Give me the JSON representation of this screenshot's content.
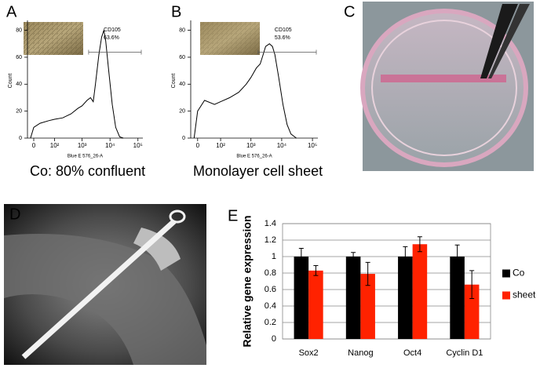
{
  "panel_labels": [
    "A",
    "B",
    "C",
    "D",
    "E"
  ],
  "chart_data": [
    {
      "type": "line",
      "caption": "Co: 80% confluent",
      "xlabel": "Blue E 576_26-A",
      "ylabel": "Count",
      "xscale": "asinh",
      "annotations": [
        "CD105",
        "63.6%"
      ],
      "color": "#000000",
      "x": [
        -10,
        0,
        20,
        60,
        100,
        200,
        400,
        700,
        1000,
        1500,
        2000,
        2500,
        3000,
        4000,
        5000,
        6000,
        7000,
        9000,
        12000,
        16000,
        22000,
        30000
      ],
      "values": [
        0,
        8,
        11,
        13,
        14,
        15,
        18,
        22,
        24,
        28,
        30,
        27,
        40,
        62,
        75,
        80,
        72,
        50,
        25,
        8,
        1,
        0
      ],
      "xlim": [
        -20,
        150000
      ],
      "xticks": [
        0,
        {
          "value": 100,
          "label": "10²"
        },
        {
          "value": 1000,
          "label": "10³"
        },
        {
          "value": 10000,
          "label": "10⁴"
        },
        {
          "value": 100000,
          "label": "10⁵"
        }
      ],
      "ylim": [
        0,
        85
      ],
      "yticks": [
        0,
        20,
        40,
        60,
        80
      ]
    },
    {
      "type": "line",
      "caption": "Monolayer cell sheet",
      "xlabel": "Blue E 576_26-A",
      "ylabel": "Count",
      "xscale": "asinh",
      "annotations": [
        "CD105",
        "53.6%"
      ],
      "color": "#000000",
      "x": [
        -10,
        0,
        20,
        60,
        100,
        200,
        400,
        700,
        1000,
        1500,
        2000,
        2500,
        3000,
        4000,
        5000,
        6000,
        8000,
        11000,
        15000,
        20000,
        30000
      ],
      "values": [
        0,
        20,
        28,
        25,
        27,
        30,
        34,
        40,
        45,
        52,
        55,
        62,
        68,
        70,
        68,
        62,
        45,
        25,
        10,
        3,
        0
      ],
      "xlim": [
        -20,
        150000
      ],
      "xticks": [
        0,
        {
          "value": 100,
          "label": "10²"
        },
        {
          "value": 1000,
          "label": "10³"
        },
        {
          "value": 10000,
          "label": "10⁴"
        },
        {
          "value": 100000,
          "label": "10⁵"
        }
      ],
      "ylim": [
        0,
        85
      ],
      "yticks": [
        0,
        20,
        40,
        60,
        80
      ]
    },
    {
      "type": "bar",
      "ylabel": "Relative gene expression",
      "legend": "right",
      "grid": true,
      "categories": [
        "Sox2",
        "Nanog",
        "Oct4",
        "Cyclin D1"
      ],
      "series": [
        {
          "name": "Co",
          "color": "#000000",
          "values": [
            1.0,
            1.0,
            1.0,
            1.0
          ],
          "errors": [
            0.1,
            0.05,
            0.12,
            0.14
          ]
        },
        {
          "name": "sheet",
          "color": "#ff2200",
          "values": [
            0.83,
            0.79,
            1.15,
            0.66
          ],
          "errors": [
            0.06,
            0.14,
            0.09,
            0.17
          ]
        }
      ],
      "ylim": [
        0,
        1.4
      ],
      "yticks": [
        0,
        0.2,
        0.4,
        0.6,
        0.8,
        1,
        1.2,
        1.4
      ]
    }
  ]
}
